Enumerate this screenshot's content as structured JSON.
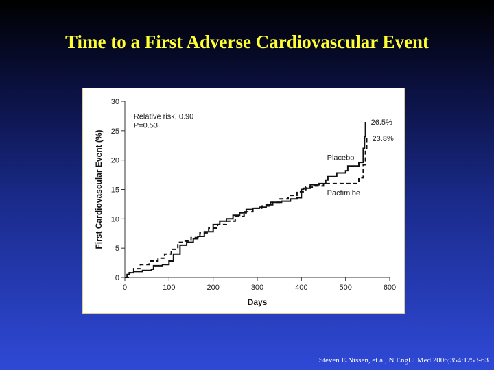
{
  "slide": {
    "title": "Time to a First Adverse Cardiovascular Event",
    "citation": "Steven E.Nissen, et al, N Engl J Med 2006;354:1253-63"
  },
  "colors": {
    "title": "#ffff33",
    "background_top": "#000000",
    "background_bottom": "#2f49d6",
    "line": "#111111"
  },
  "chart_data": {
    "type": "line",
    "xlabel": "Days",
    "ylabel": "First Cardiovascular Event (%)",
    "xlim": [
      0,
      600
    ],
    "ylim": [
      0,
      30
    ],
    "xticks": [
      0,
      100,
      200,
      300,
      400,
      500,
      600
    ],
    "yticks": [
      0,
      5,
      10,
      15,
      20,
      25,
      30
    ],
    "grid": false,
    "legend": "none",
    "series": [
      {
        "name": "Placebo",
        "style": "solid",
        "end_label": "26.5%",
        "x": [
          0,
          5,
          10,
          20,
          40,
          60,
          65,
          85,
          100,
          110,
          125,
          140,
          155,
          165,
          180,
          200,
          215,
          230,
          245,
          260,
          275,
          290,
          305,
          320,
          335,
          355,
          375,
          390,
          400,
          405,
          420,
          440,
          455,
          460,
          480,
          500,
          505,
          530,
          535,
          540,
          543,
          545
        ],
        "y": [
          0,
          0.5,
          0.8,
          1.0,
          1.2,
          1.4,
          2.0,
          2.2,
          2.8,
          4.0,
          5.5,
          6.0,
          6.6,
          7.0,
          7.8,
          9.0,
          9.6,
          10.0,
          10.6,
          11.0,
          11.6,
          11.8,
          12.0,
          12.4,
          12.8,
          13.0,
          13.4,
          13.6,
          15.0,
          15.2,
          15.8,
          16.0,
          16.6,
          17.2,
          17.8,
          18.2,
          19.0,
          19.6,
          19.6,
          22.0,
          24.0,
          26.5
        ]
      },
      {
        "name": "Pactimibe",
        "style": "dashed",
        "end_label": "23.8%",
        "x": [
          0,
          10,
          20,
          35,
          55,
          75,
          90,
          105,
          120,
          135,
          150,
          170,
          190,
          210,
          230,
          250,
          270,
          290,
          310,
          330,
          350,
          370,
          390,
          410,
          430,
          450,
          470,
          490,
          510,
          530,
          540,
          545,
          548
        ],
        "y": [
          0,
          0.8,
          1.5,
          2.2,
          2.8,
          3.3,
          4.0,
          4.8,
          6.0,
          6.2,
          6.8,
          7.6,
          8.4,
          9.0,
          9.6,
          10.4,
          11.2,
          11.8,
          12.2,
          12.8,
          13.4,
          14.0,
          14.6,
          15.4,
          15.6,
          16.0,
          16.0,
          16.0,
          16.0,
          17.0,
          19.2,
          21.5,
          23.8
        ]
      }
    ],
    "annotations": [
      {
        "text": "Relative risk, 0.90",
        "x": 20,
        "y": 27.5
      },
      {
        "text": "P=0.53",
        "x": 20,
        "y": 26.0
      },
      {
        "text": "Placebo",
        "x": 458,
        "y": 20.5
      },
      {
        "text": "Pactimibe",
        "x": 458,
        "y": 14.5
      }
    ]
  }
}
